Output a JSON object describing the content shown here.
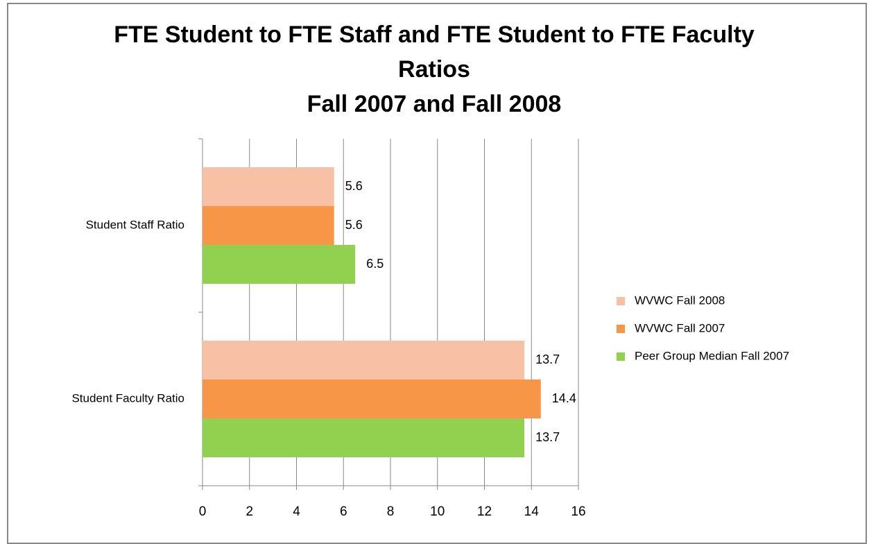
{
  "chart_data": {
    "type": "hbar",
    "title": "FTE Student to FTE Staff and FTE Student to FTE Faculty Ratios",
    "subtitle": "Fall 2007 and Fall 2008",
    "categories": [
      "Student Staff Ratio",
      "Student Faculty Ratio"
    ],
    "series": [
      {
        "name": "WVWC Fall 2008",
        "color": "#f8c0a4",
        "values": [
          5.6,
          13.7
        ]
      },
      {
        "name": "WVWC Fall 2007",
        "color": "#f79646",
        "values": [
          5.6,
          14.4
        ]
      },
      {
        "name": "Peer Group Median Fall 2007",
        "color": "#92d050",
        "values": [
          6.5,
          13.7
        ]
      }
    ],
    "xlim": [
      0,
      16
    ],
    "xticks": [
      0,
      2,
      4,
      6,
      8,
      10,
      12,
      14,
      16
    ],
    "grid": true,
    "legend": "right"
  }
}
